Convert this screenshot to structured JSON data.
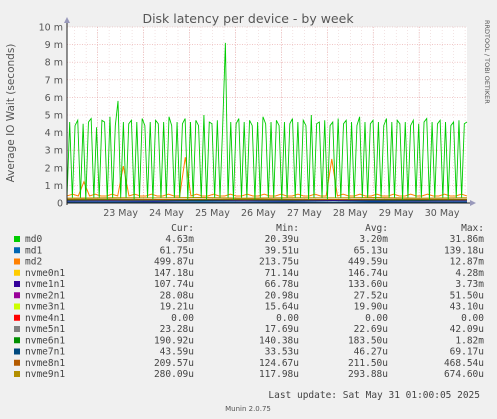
{
  "chart_data": {
    "type": "line",
    "title": "Disk latency per device - by week",
    "ylabel": "Average IO Wait (seconds)",
    "side_label": "RRDTOOL / TOBI OETIKER",
    "ylim": [
      0,
      0.01
    ],
    "y_ticks": [
      {
        "v": 0,
        "label": "0"
      },
      {
        "v": 0.001,
        "label": "1 m"
      },
      {
        "v": 0.002,
        "label": "2 m"
      },
      {
        "v": 0.003,
        "label": "3 m"
      },
      {
        "v": 0.004,
        "label": "4 m"
      },
      {
        "v": 0.005,
        "label": "5 m"
      },
      {
        "v": 0.006,
        "label": "6 m"
      },
      {
        "v": 0.007,
        "label": "7 m"
      },
      {
        "v": 0.008,
        "label": "8 m"
      },
      {
        "v": 0.009,
        "label": "9 m"
      },
      {
        "v": 0.01,
        "label": "10 m"
      }
    ],
    "xlim": [
      "2025-05-22 08:00",
      "2025-05-31 01:00"
    ],
    "x_ticks": [
      {
        "t": "2025-05-23 00:00",
        "label": "23 May"
      },
      {
        "t": "2025-05-24 00:00",
        "label": "24 May"
      },
      {
        "t": "2025-05-25 00:00",
        "label": "25 May"
      },
      {
        "t": "2025-05-26 00:00",
        "label": "26 May"
      },
      {
        "t": "2025-05-27 00:00",
        "label": "27 May"
      },
      {
        "t": "2025-05-28 00:00",
        "label": "28 May"
      },
      {
        "t": "2025-05-29 00:00",
        "label": "29 May"
      },
      {
        "t": "2025-05-30 00:00",
        "label": "30 May"
      }
    ],
    "grid": true,
    "legend_headers": [
      "Cur:",
      "Min:",
      "Avg:",
      "Max:"
    ],
    "series": [
      {
        "name": "md0",
        "color": "#00cc00",
        "cur": "4.63m",
        "min": "20.39u",
        "avg": "3.20m",
        "max": "31.86m",
        "values": [
          0.0003,
          0.0046,
          0.0003,
          0.0044,
          0.0047,
          0.0003,
          0.0045,
          0.0002,
          0.0046,
          0.0048,
          0.0003,
          0.0043,
          0.0003,
          0.0047,
          0.0046,
          0.0002,
          0.0049,
          0.0003,
          0.0044,
          0.0058,
          0.0003,
          0.0046,
          0.0003,
          0.0045,
          0.0047,
          0.0002,
          0.0046,
          0.0003,
          0.0048,
          0.0044,
          0.0003,
          0.0046,
          0.0002,
          0.0047,
          0.0045,
          0.0003,
          0.0046,
          0.0003,
          0.0049,
          0.0044,
          0.0003,
          0.0046,
          0.0003,
          0.0045,
          0.0048,
          0.0002,
          0.0046,
          0.0003,
          0.0047,
          0.0044,
          0.0003,
          0.005,
          0.0002,
          0.0046,
          0.0045,
          0.0003,
          0.0047,
          0.0003,
          0.0044,
          0.0091,
          0.0003,
          0.0046,
          0.0002,
          0.0045,
          0.0048,
          0.0003,
          0.0046,
          0.0003,
          0.0047,
          0.0044,
          0.0002,
          0.0046,
          0.0003,
          0.0049,
          0.0045,
          0.0003,
          0.0046,
          0.0003,
          0.0047,
          0.0044,
          0.0002,
          0.0046,
          0.0003,
          0.0045,
          0.0048,
          0.0003,
          0.0046,
          0.0003,
          0.0047,
          0.0044,
          0.0002,
          0.005,
          0.0003,
          0.0045,
          0.0046,
          0.0003,
          0.0047,
          0.0002,
          0.0044,
          0.0046,
          0.0003,
          0.0048,
          0.0003,
          0.0045,
          0.0047,
          0.0002,
          0.0046,
          0.0003,
          0.0044,
          0.0049,
          0.0003,
          0.0046,
          0.0003,
          0.0045,
          0.0047,
          0.0002,
          0.0046,
          0.0003,
          0.0044,
          0.0048,
          0.0003,
          0.0046,
          0.0003,
          0.0047,
          0.0045,
          0.0002,
          0.0046,
          0.0003,
          0.0044,
          0.0047,
          0.0003,
          0.0045,
          0.0003,
          0.0046,
          0.0048,
          0.0002,
          0.0046,
          0.0003,
          0.0045,
          0.0047,
          0.0003,
          0.0046,
          0.0002,
          0.0044,
          0.0046,
          0.0003,
          0.0047,
          0.0003,
          0.0045,
          0.0046
        ]
      },
      {
        "name": "md1",
        "color": "#0066b3",
        "cur": "61.75u",
        "min": "39.51u",
        "avg": "65.13u",
        "max": "139.18u",
        "values": [
          6e-05,
          7e-05,
          5e-05,
          8e-05,
          6e-05,
          7e-05,
          6e-05,
          9e-05,
          5e-05,
          7e-05
        ]
      },
      {
        "name": "md2",
        "color": "#ff8000",
        "cur": "499.87u",
        "min": "213.75u",
        "avg": "449.59u",
        "max": "12.87m",
        "values": [
          0.0004,
          0.0005,
          0.0004,
          0.0012,
          0.0004,
          0.0005,
          0.0004,
          0.0004,
          0.0005,
          0.0004,
          0.0021,
          0.0004,
          0.0005,
          0.0004,
          0.0004,
          0.0005,
          0.0004,
          0.0004,
          0.0005,
          0.0004,
          0.0004,
          0.0026,
          0.0004,
          0.0005,
          0.0004,
          0.0004,
          0.0005,
          0.0004,
          0.0004,
          0.0005,
          0.0004,
          0.0004,
          0.0005,
          0.0004,
          0.0004,
          0.0005,
          0.0004,
          0.0004,
          0.0005,
          0.0004,
          0.0004,
          0.0005,
          0.0004,
          0.0004,
          0.0005,
          0.0004,
          0.0004,
          0.0025,
          0.0004,
          0.0005,
          0.0004,
          0.0004,
          0.0005,
          0.0004,
          0.0004,
          0.0005,
          0.0004,
          0.0004,
          0.0005,
          0.0004,
          0.0004,
          0.0005,
          0.0004,
          0.0004,
          0.0005,
          0.0004,
          0.0004,
          0.0005,
          0.0004,
          0.0004,
          0.0005,
          0.0004
        ]
      },
      {
        "name": "nvme0n1",
        "color": "#ffcc00",
        "cur": "147.18u",
        "min": "71.14u",
        "avg": "146.74u",
        "max": "4.28m",
        "values": [
          0.00014,
          0.00015,
          0.00013,
          0.00016,
          0.00014,
          0.00015,
          0.00014,
          0.00016,
          0.00013,
          0.00015
        ]
      },
      {
        "name": "nvme1n1",
        "color": "#330099",
        "cur": "107.74u",
        "min": "66.78u",
        "avg": "133.60u",
        "max": "3.73m",
        "values": [
          0.00012,
          0.00013,
          0.00011,
          0.00014,
          0.00013,
          0.00012,
          0.00014,
          0.00013,
          0.00012,
          0.00013
        ]
      },
      {
        "name": "nvme2n1",
        "color": "#990099",
        "cur": "28.08u",
        "min": "20.98u",
        "avg": "27.52u",
        "max": "51.50u",
        "values": [
          2.8e-05,
          2.7e-05,
          2.9e-05,
          2.6e-05,
          2.8e-05,
          2.7e-05,
          2.9e-05,
          2.8e-05,
          2.7e-05,
          2.8e-05
        ]
      },
      {
        "name": "nvme3n1",
        "color": "#ccff00",
        "cur": "19.21u",
        "min": "15.64u",
        "avg": "19.90u",
        "max": "43.10u",
        "values": [
          2e-05,
          2e-05,
          2e-05,
          2e-05,
          2e-05,
          2e-05,
          2e-05,
          2e-05,
          2e-05,
          2e-05
        ]
      },
      {
        "name": "nvme4n1",
        "color": "#ff0000",
        "cur": "0.00",
        "min": "0.00",
        "avg": "0.00",
        "max": "0.00",
        "values": [
          0,
          0,
          0,
          0,
          0,
          0,
          0,
          0,
          0,
          0
        ]
      },
      {
        "name": "nvme5n1",
        "color": "#808080",
        "cur": "23.28u",
        "min": "17.69u",
        "avg": "22.69u",
        "max": "42.09u",
        "values": [
          2.3e-05,
          2.2e-05,
          2.3e-05,
          2.2e-05,
          2.3e-05,
          2.2e-05,
          2.3e-05,
          2.2e-05,
          2.3e-05,
          2.2e-05
        ]
      },
      {
        "name": "nvme6n1",
        "color": "#008f00",
        "cur": "190.92u",
        "min": "140.38u",
        "avg": "183.50u",
        "max": "1.82m",
        "values": [
          0.00018,
          0.00019,
          0.00018,
          0.00017,
          0.00019,
          0.00018,
          0.00019,
          0.00018,
          0.00017,
          0.00019
        ]
      },
      {
        "name": "nvme7n1",
        "color": "#00487d",
        "cur": "43.59u",
        "min": "33.53u",
        "avg": "46.27u",
        "max": "69.17u",
        "values": [
          4.5e-05,
          4.6e-05,
          4.4e-05,
          4.7e-05,
          4.6e-05,
          4.5e-05,
          4.7e-05,
          4.6e-05,
          4.4e-05,
          4.6e-05
        ]
      },
      {
        "name": "nvme8n1",
        "color": "#b35a00",
        "cur": "209.57u",
        "min": "124.67u",
        "avg": "211.50u",
        "max": "468.54u",
        "values": [
          0.00021,
          0.00022,
          0.0002,
          0.00021,
          0.00022,
          0.00021,
          0.0002,
          0.00022,
          0.00021,
          0.00021
        ]
      },
      {
        "name": "nvme9n1",
        "color": "#b38f00",
        "cur": "280.09u",
        "min": "117.98u",
        "avg": "293.88u",
        "max": "674.60u",
        "values": [
          0.00028,
          0.0003,
          0.00029,
          0.00031,
          0.00028,
          0.0003,
          0.00029,
          0.00031,
          0.00028,
          0.0003
        ]
      }
    ]
  },
  "footer": {
    "last_update": "Last update: Sat May 31 01:00:05 2025",
    "version": "Munin 2.0.75"
  }
}
